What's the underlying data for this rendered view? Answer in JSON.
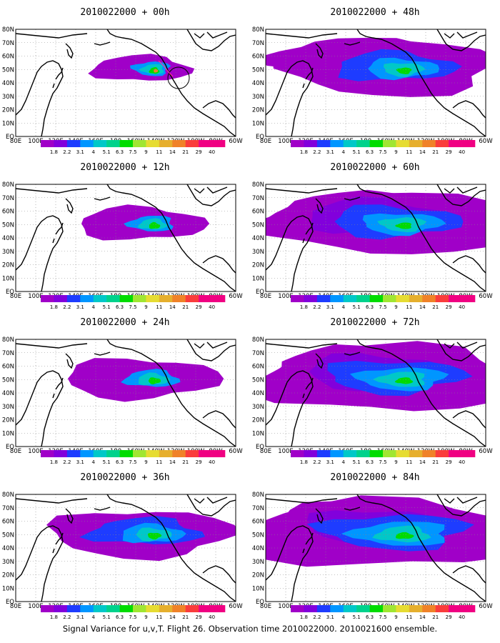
{
  "panels": [
    {
      "title": "2010022000 + 00h",
      "col": 0,
      "row": 0,
      "level": 0
    },
    {
      "title": "2010022000 + 12h",
      "col": 0,
      "row": 1,
      "level": 1
    },
    {
      "title": "2010022000 + 24h",
      "col": 0,
      "row": 2,
      "level": 2
    },
    {
      "title": "2010022000 + 36h",
      "col": 0,
      "row": 3,
      "level": 3
    },
    {
      "title": "2010022000 + 48h",
      "col": 1,
      "row": 0,
      "level": 4
    },
    {
      "title": "2010022000 + 60h",
      "col": 1,
      "row": 1,
      "level": 5
    },
    {
      "title": "2010022000 + 72h",
      "col": 1,
      "row": 2,
      "level": 6
    },
    {
      "title": "2010022000 + 84h",
      "col": 1,
      "row": 3,
      "level": 7
    }
  ],
  "lon_labels": [
    "80E",
    "100E",
    "120E",
    "140E",
    "160E",
    "180",
    "160W",
    "140W",
    "120W",
    "100W",
    "80W",
    "60W"
  ],
  "lat_labels": [
    "EQ",
    "10N",
    "20N",
    "30N",
    "40N",
    "50N",
    "60N",
    "70N",
    "80N"
  ],
  "colorbar": {
    "labels": [
      "1.8",
      "2.2",
      "3.1",
      "4",
      "5.1",
      "6.3",
      "7.5",
      "9",
      "11",
      "14",
      "21",
      "29",
      "40"
    ],
    "colors": [
      "#a000c8",
      "#8200dc",
      "#1e3cff",
      "#0096ff",
      "#00c8c8",
      "#00d28c",
      "#00dc00",
      "#a0e632",
      "#e6dc32",
      "#e6af2d",
      "#f08228",
      "#fa3c3c",
      "#f00082"
    ]
  },
  "footer": "Signal Variance for u,v,T. Flight 26. Observation time 2010022000. 2010021600 ensemble."
}
